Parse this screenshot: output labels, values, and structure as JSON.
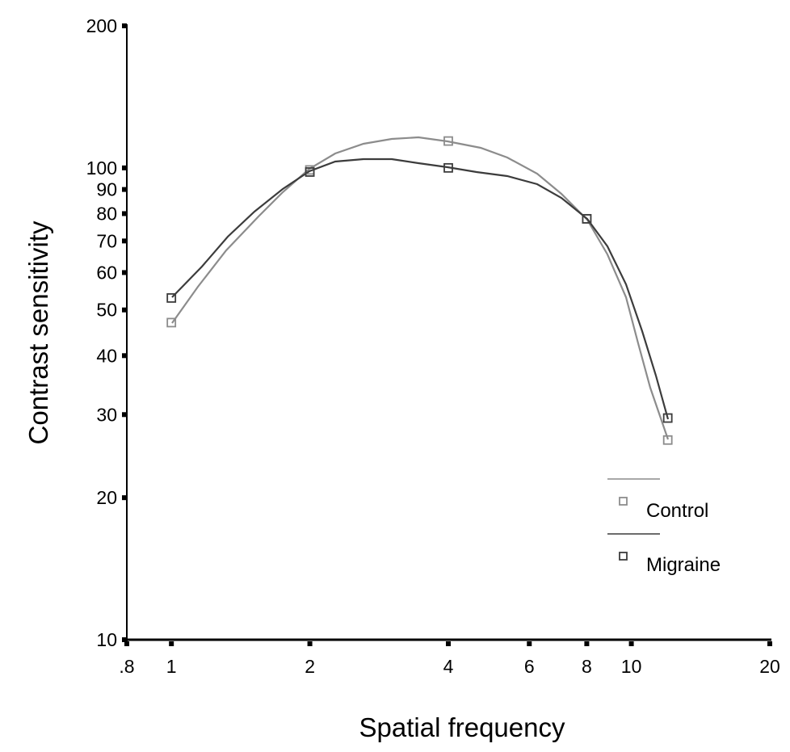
{
  "chart_data": {
    "type": "line",
    "title": "",
    "xlabel": "Spatial frequency",
    "ylabel": "Contrast sensitivity",
    "xscale": "log",
    "yscale": "log",
    "xlim": [
      0.8,
      20
    ],
    "ylim": [
      10,
      200
    ],
    "x_ticks": [
      0.8,
      1,
      2,
      4,
      6,
      8,
      10,
      20
    ],
    "x_tick_labels": [
      ".8",
      "1",
      "2",
      "4",
      "6",
      "8",
      "10",
      "20"
    ],
    "y_ticks": [
      10,
      20,
      30,
      40,
      50,
      60,
      70,
      80,
      90,
      100,
      200
    ],
    "y_tick_labels": [
      "10",
      "20",
      "30",
      "40",
      "50",
      "60",
      "70",
      "80",
      "90",
      "100",
      "200"
    ],
    "grid": false,
    "legend_position": "lower right",
    "x": [
      1,
      2,
      4,
      8,
      12
    ],
    "series": [
      {
        "name": "Control",
        "values": [
          47,
          99,
          114,
          78,
          26.5
        ],
        "color": "#8c8c8c",
        "marker": "open-square"
      },
      {
        "name": "Migraine",
        "values": [
          53,
          98,
          100,
          78,
          29.5
        ],
        "color": "#3c3c3c",
        "marker": "open-square"
      }
    ]
  },
  "legend": {
    "items": [
      {
        "label": "Control",
        "color": "#8c8c8c"
      },
      {
        "label": "Migraine",
        "color": "#3c3c3c"
      }
    ]
  }
}
